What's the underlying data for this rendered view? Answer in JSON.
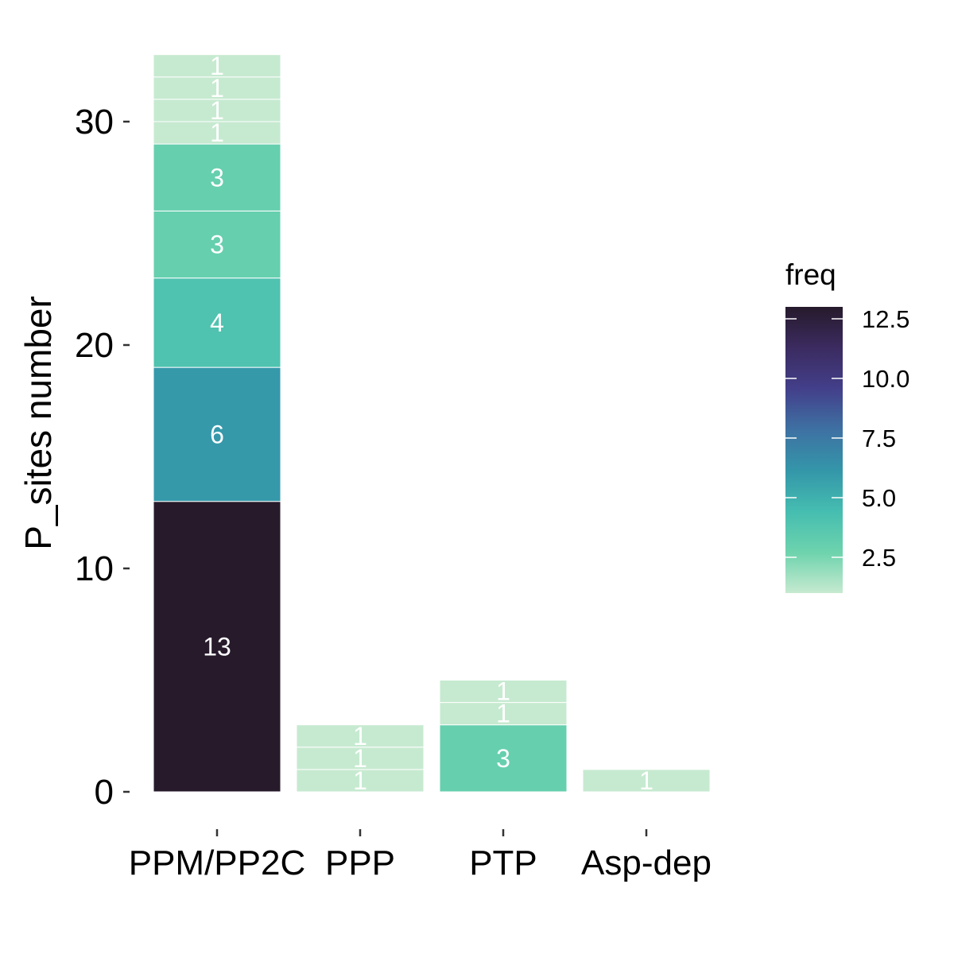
{
  "chart_data": {
    "type": "bar",
    "stacked": true,
    "ylabel": "P_sites number",
    "xlabel": "",
    "ylim": [
      0,
      33
    ],
    "yticks": [
      0,
      10,
      20,
      30
    ],
    "grid": false,
    "categories": [
      "PPM/PP2C",
      "PPP",
      "PTP",
      "Asp-dep"
    ],
    "stacks": [
      {
        "category": "PPM/PP2C",
        "segments": [
          13,
          6,
          4,
          3,
          3,
          1,
          1,
          1,
          1
        ]
      },
      {
        "category": "PPP",
        "segments": [
          1,
          1,
          1
        ]
      },
      {
        "category": "PTP",
        "segments": [
          3,
          1,
          1
        ]
      },
      {
        "category": "Asp-dep",
        "segments": [
          1
        ]
      }
    ],
    "legend": {
      "title": "freq",
      "placement": "right",
      "type": "colorbar",
      "range": [
        1,
        13
      ],
      "ticks": [
        "2.5",
        "5.0",
        "7.5",
        "10.0",
        "12.5"
      ],
      "colors": [
        "#c6ead0",
        "#6dd3ad",
        "#45bdb0",
        "#3496a9",
        "#3e71a3",
        "#433f8a",
        "#3b2b60",
        "#261a2b"
      ]
    }
  }
}
